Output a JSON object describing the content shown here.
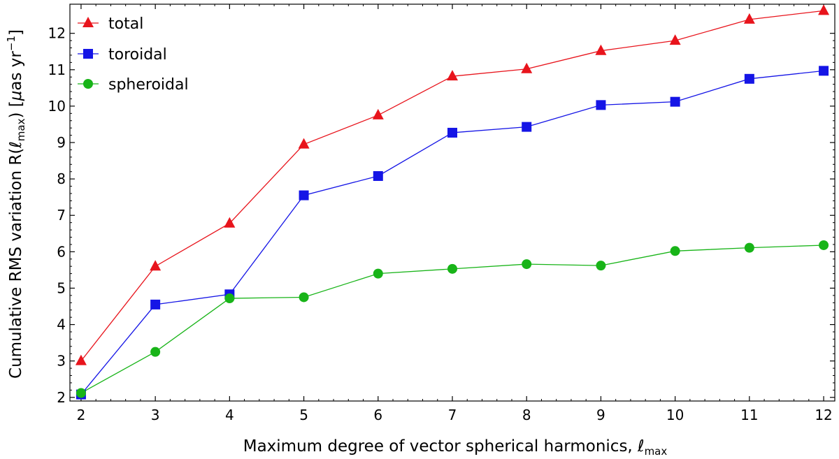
{
  "chart_data": {
    "type": "line",
    "title": "",
    "xlabel": "Maximum degree of vector spherical harmonics, ℓmax",
    "xlabel_main": "Maximum degree of vector spherical harmonics, ",
    "xlabel_symbol": "ℓ",
    "xlabel_sub": "max",
    "ylabel": "Cumulative RMS variation R(ℓmax) [μas yr⁻¹]",
    "ylabel_prefix": "Cumulative RMS variation R(",
    "ylabel_symbol": "ℓ",
    "ylabel_sub": "max",
    "ylabel_mid": ") [",
    "ylabel_mu": "μ",
    "ylabel_unit": "as yr",
    "ylabel_sup": "−1",
    "ylabel_end": "]",
    "x": [
      2,
      3,
      4,
      5,
      6,
      7,
      8,
      9,
      10,
      11,
      12
    ],
    "xlim": [
      1.85,
      12.15
    ],
    "ylim": [
      1.9,
      12.8
    ],
    "xticks": [
      2,
      3,
      4,
      5,
      6,
      7,
      8,
      9,
      10,
      11,
      12
    ],
    "yticks": [
      2,
      3,
      4,
      5,
      6,
      7,
      8,
      9,
      10,
      11,
      12
    ],
    "legend_position": "top-left",
    "series": [
      {
        "name": "total",
        "color": "#e8141c",
        "marker": "triangle",
        "values": [
          3.0,
          5.6,
          6.78,
          8.95,
          9.75,
          10.82,
          11.02,
          11.52,
          11.8,
          12.38,
          12.62
        ]
      },
      {
        "name": "toroidal",
        "color": "#1515e6",
        "marker": "square",
        "values": [
          2.08,
          4.55,
          4.83,
          7.55,
          8.08,
          9.27,
          9.43,
          10.03,
          10.12,
          10.75,
          10.97
        ]
      },
      {
        "name": "spheroidal",
        "color": "#18b418",
        "marker": "circle",
        "values": [
          2.12,
          3.25,
          4.72,
          4.75,
          5.4,
          5.53,
          5.66,
          5.62,
          6.02,
          6.11,
          6.18
        ]
      }
    ]
  }
}
